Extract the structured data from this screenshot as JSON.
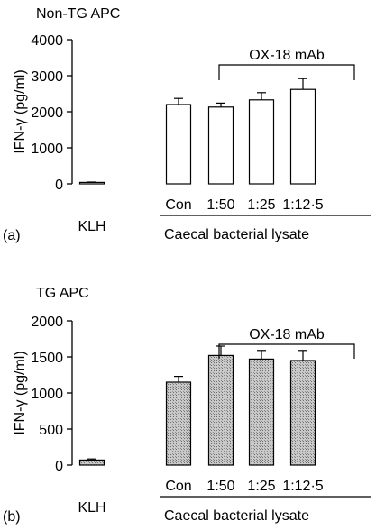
{
  "chart_data": [
    {
      "type": "bar",
      "panel_label": "(a)",
      "title": "Non-TG APC",
      "ylabel": "IFN-γ (pg/ml)",
      "ylim": [
        0,
        4000
      ],
      "yticks": [
        "0",
        "1000",
        "2000",
        "3000",
        "4000"
      ],
      "ytick_values": [
        0,
        1000,
        2000,
        3000,
        4000
      ],
      "categories": [
        "KLH",
        "Con",
        "1:50",
        "1:25",
        "1:12·5"
      ],
      "values": [
        40,
        2200,
        2130,
        2330,
        2620
      ],
      "errors": [
        10,
        170,
        110,
        200,
        300
      ],
      "bar_fill": "#ffffff",
      "bracket_label": "OX-18 mAb",
      "group_label": "Caecal bacterial lysate"
    },
    {
      "type": "bar",
      "panel_label": "(b)",
      "title": "TG APC",
      "ylabel": "IFN-γ (pg/ml)",
      "ylim": [
        0,
        2000
      ],
      "yticks": [
        "0",
        "500",
        "1000",
        "1500",
        "2000"
      ],
      "ytick_values": [
        0,
        500,
        1000,
        1500,
        2000
      ],
      "categories": [
        "KLH",
        "Con",
        "1:50",
        "1:25",
        "1:12·5"
      ],
      "values": [
        70,
        1150,
        1520,
        1470,
        1450
      ],
      "errors": [
        15,
        80,
        130,
        120,
        140
      ],
      "bar_fill": "#b8b8b8",
      "bracket_label": "OX-18 mAb",
      "group_label": "Caecal bacterial lysate"
    }
  ]
}
